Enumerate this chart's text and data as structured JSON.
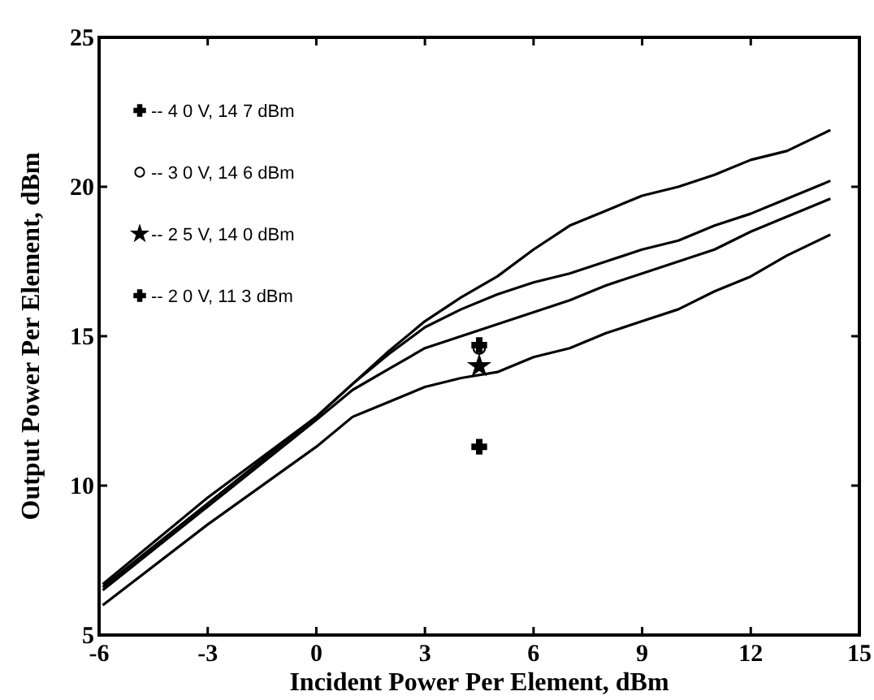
{
  "chart_data": {
    "type": "line",
    "xlabel": "Incident Power Per Element, dBm",
    "ylabel": "Output Power Per Element, dBm",
    "xlim": [
      -6,
      15
    ],
    "xticks": [
      -6,
      -3,
      0,
      3,
      6,
      9,
      12,
      15
    ],
    "ylim": [
      5,
      25
    ],
    "yticks": [
      5,
      10,
      15,
      20,
      25
    ],
    "grid": false,
    "legend": "top left",
    "line_style": "solid",
    "series": [
      {
        "color": "#000000",
        "x": [
          -5.9,
          -3,
          0,
          1,
          2,
          3,
          4,
          5,
          6,
          7,
          8,
          9,
          10,
          11,
          12,
          13,
          14.2
        ],
        "values": [
          6.7,
          9.6,
          12.3,
          13.4,
          14.5,
          15.5,
          16.3,
          17.0,
          17.9,
          18.7,
          19.2,
          19.7,
          20.0,
          20.4,
          20.9,
          21.2,
          21.9
        ]
      },
      {
        "color": "#000000",
        "x": [
          -5.9,
          -3,
          0,
          1,
          2,
          3,
          4,
          5,
          6,
          7,
          8,
          9,
          10,
          11,
          12,
          13,
          14.2
        ],
        "values": [
          6.6,
          9.4,
          12.3,
          13.4,
          14.4,
          15.3,
          15.9,
          16.4,
          16.8,
          17.1,
          17.5,
          17.9,
          18.2,
          18.7,
          19.1,
          19.6,
          20.2
        ]
      },
      {
        "color": "#000000",
        "x": [
          -5.9,
          -3,
          0,
          1,
          2,
          3,
          4,
          5,
          6,
          7,
          8,
          9,
          10,
          11,
          12,
          13,
          14.2
        ],
        "values": [
          6.5,
          9.3,
          12.2,
          13.2,
          13.9,
          14.6,
          15.0,
          15.4,
          15.8,
          16.2,
          16.7,
          17.1,
          17.5,
          17.9,
          18.5,
          19.0,
          19.6
        ]
      },
      {
        "color": "#000000",
        "x": [
          -5.9,
          -3,
          0,
          1,
          2,
          3,
          4,
          5,
          6,
          7,
          8,
          9,
          10,
          11,
          12,
          13,
          14.2
        ],
        "values": [
          6.0,
          8.7,
          11.3,
          12.3,
          12.8,
          13.3,
          13.6,
          13.8,
          14.3,
          14.6,
          15.1,
          15.5,
          15.9,
          16.5,
          17.0,
          17.7,
          18.4
        ]
      },
      {
        "type": "scatter",
        "name": "-- 4 0 V, 14 7 dBm",
        "color": "#000000",
        "marker": "cross",
        "x": [
          4.5
        ],
        "values": [
          14.7
        ]
      },
      {
        "type": "scatter",
        "name": "-- 3 0 V, 14 6 dBm",
        "color": "#000000",
        "marker": "circle",
        "x": [
          4.5
        ],
        "values": [
          14.6
        ]
      },
      {
        "type": "scatter",
        "name": "-- 2 5 V, 14 0 dBm",
        "color": "#000000",
        "marker": "star",
        "x": [
          4.5
        ],
        "values": [
          14.0
        ]
      },
      {
        "type": "scatter",
        "name": "-- 2 0 V, 11 3 dBm",
        "color": "#000000",
        "marker": "cross",
        "x": [
          4.5
        ],
        "values": [
          11.3
        ]
      }
    ]
  }
}
